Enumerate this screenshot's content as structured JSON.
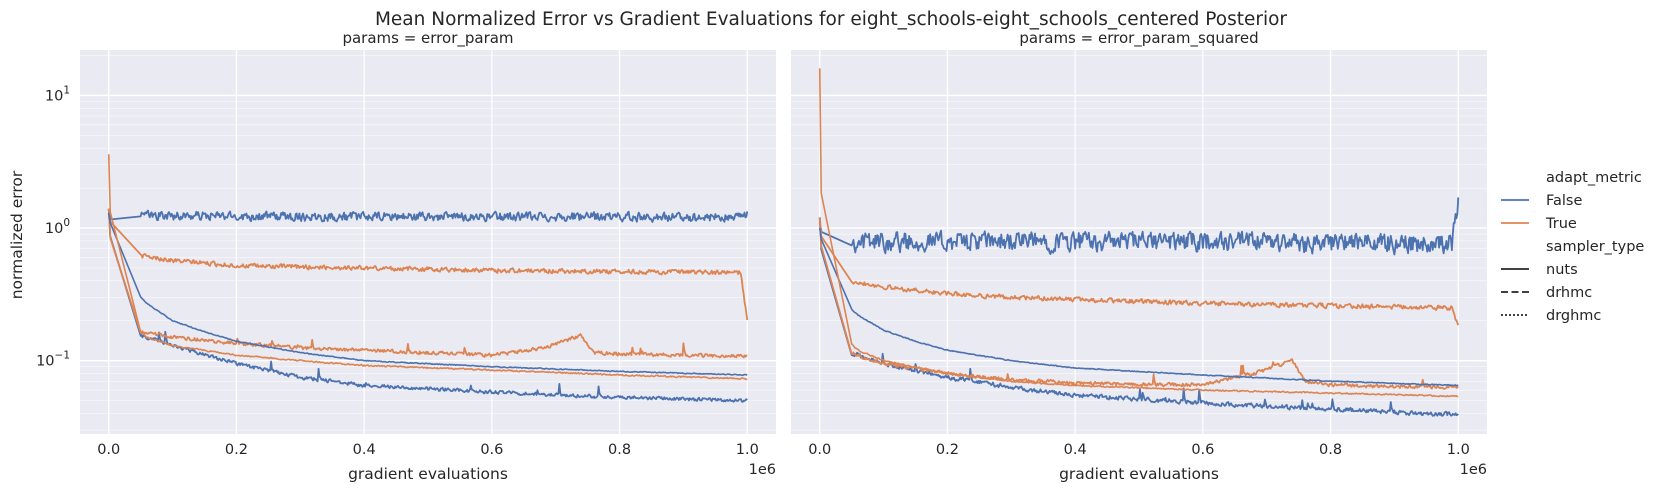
{
  "chart_data": {
    "type": "line",
    "title": "Mean Normalized Error vs Gradient Evaluations for eight_schools-eight_schools_centered Posterior",
    "ylabel": "normalized error",
    "yscale": "log",
    "xlabel": "gradient evaluations",
    "x_offset_label": "1e6",
    "x_tick_labels": [
      "0.0",
      "0.2",
      "0.4",
      "0.6",
      "0.8",
      "1.0"
    ],
    "x_ticks": [
      0,
      200000,
      400000,
      600000,
      800000,
      1000000
    ],
    "y_tick_labels": [
      {
        "base": "10",
        "exp": "−1",
        "value": 0.1
      },
      {
        "base": "10",
        "exp": "0",
        "value": 1
      },
      {
        "base": "10",
        "exp": "1",
        "value": 10
      }
    ],
    "xlim": [
      -45000,
      1045000
    ],
    "ylim": [
      0.028,
      22
    ],
    "grid": true,
    "legend": {
      "placement": "right",
      "hue_title": "adapt_metric",
      "hue_entries": [
        {
          "label": "False",
          "color": "#4c72b0"
        },
        {
          "label": "True",
          "color": "#dd8452"
        }
      ],
      "style_title": "sampler_type",
      "style_entries": [
        {
          "label": "nuts",
          "dash": "solid"
        },
        {
          "label": "drhmc",
          "dash": "dashed"
        },
        {
          "label": "drghmc",
          "dash": "dotted"
        }
      ]
    },
    "panels": [
      {
        "title": "params = error_param",
        "series": [
          {
            "adapt_metric": "False",
            "sampler_type": "drhmc",
            "color": "#4c72b0",
            "noise": 0.1,
            "x": [
              0,
              5000,
              20000,
              50000,
              100000,
              200000,
              400000,
              600000,
              800000,
              990000,
              1000000
            ],
            "y": [
              1.3,
              1.2,
              1.22,
              1.25,
              1.24,
              1.23,
              1.22,
              1.22,
              1.22,
              1.2,
              1.3
            ]
          },
          {
            "adapt_metric": "True",
            "sampler_type": "drhmc",
            "color": "#dd8452",
            "noise": 0.05,
            "x": [
              0,
              5000,
              20000,
              50000,
              100000,
              200000,
              300000,
              400000,
              600000,
              800000,
              990000,
              1000000
            ],
            "y": [
              1.3,
              0.9,
              0.7,
              0.62,
              0.57,
              0.52,
              0.51,
              0.5,
              0.48,
              0.47,
              0.46,
              0.2
            ]
          },
          {
            "adapt_metric": "False",
            "sampler_type": "nuts",
            "color": "#4c72b0",
            "noise": 0.04,
            "x": [
              0,
              5000,
              10000,
              20000,
              40000,
              70000,
              100000,
              200000,
              300000,
              400000,
              600000,
              800000,
              1000000
            ],
            "y": [
              1.4,
              0.5,
              0.3,
              0.2,
              0.16,
              0.145,
              0.13,
              0.095,
              0.075,
              0.065,
              0.058,
              0.053,
              0.05
            ]
          },
          {
            "adapt_metric": "True",
            "sampler_type": "nuts",
            "color": "#dd8452",
            "noise": 0.04,
            "x": [
              0,
              5000,
              10000,
              20000,
              40000,
              70000,
              100000,
              200000,
              300000,
              400000,
              500000,
              600000,
              680000,
              740000,
              760000,
              800000,
              900000,
              1000000
            ],
            "y": [
              1.4,
              0.5,
              0.3,
              0.2,
              0.17,
              0.16,
              0.15,
              0.135,
              0.125,
              0.12,
              0.115,
              0.11,
              0.125,
              0.155,
              0.115,
              0.113,
              0.11,
              0.108
            ]
          },
          {
            "adapt_metric": "False",
            "sampler_type": "drghmc",
            "color": "#4c72b0",
            "noise": 0.01,
            "x": [
              0,
              10000,
              30000,
              60000,
              100000,
              150000,
              200000,
              300000,
              400000,
              600000,
              800000,
              1000000
            ],
            "y": [
              1.3,
              0.6,
              0.38,
              0.27,
              0.2,
              0.165,
              0.14,
              0.115,
              0.1,
              0.09,
              0.083,
              0.078
            ]
          },
          {
            "adapt_metric": "True",
            "sampler_type": "drghmc",
            "color": "#dd8452",
            "noise": 0.015,
            "x": [
              0,
              3000,
              8000,
              15000,
              30000,
              60000,
              100000,
              200000,
              300000,
              400000,
              600000,
              800000,
              1000000
            ],
            "y": [
              3.6,
              1.0,
              0.5,
              0.3,
              0.2,
              0.15,
              0.13,
              0.11,
              0.1,
              0.092,
              0.085,
              0.078,
              0.073
            ]
          }
        ]
      },
      {
        "title": "params = error_param_squared",
        "series": [
          {
            "adapt_metric": "False",
            "sampler_type": "drhmc",
            "color": "#4c72b0",
            "noise": 0.22,
            "x": [
              0,
              5000,
              20000,
              50000,
              100000,
              200000,
              400000,
              600000,
              800000,
              990000,
              1000000
            ],
            "y": [
              1.1,
              0.8,
              0.78,
              0.8,
              0.8,
              0.8,
              0.8,
              0.8,
              0.78,
              0.78,
              1.5
            ]
          },
          {
            "adapt_metric": "True",
            "sampler_type": "drhmc",
            "color": "#dd8452",
            "noise": 0.05,
            "x": [
              0,
              5000,
              20000,
              50000,
              100000,
              200000,
              300000,
              400000,
              600000,
              800000,
              990000,
              1000000
            ],
            "y": [
              1.2,
              0.65,
              0.48,
              0.4,
              0.36,
              0.32,
              0.3,
              0.29,
              0.27,
              0.26,
              0.25,
              0.18
            ]
          },
          {
            "adapt_metric": "False",
            "sampler_type": "nuts",
            "color": "#4c72b0",
            "noise": 0.05,
            "x": [
              0,
              5000,
              10000,
              20000,
              40000,
              70000,
              100000,
              200000,
              300000,
              400000,
              600000,
              800000,
              1000000
            ],
            "y": [
              1.2,
              0.4,
              0.22,
              0.15,
              0.12,
              0.105,
              0.095,
              0.075,
              0.063,
              0.055,
              0.048,
              0.043,
              0.039
            ]
          },
          {
            "adapt_metric": "True",
            "sampler_type": "nuts",
            "color": "#dd8452",
            "noise": 0.04,
            "x": [
              0,
              5000,
              10000,
              20000,
              40000,
              70000,
              100000,
              200000,
              300000,
              400000,
              500000,
              600000,
              680000,
              740000,
              760000,
              800000,
              900000,
              1000000
            ],
            "y": [
              1.2,
              0.45,
              0.25,
              0.16,
              0.12,
              0.105,
              0.095,
              0.08,
              0.072,
              0.068,
              0.066,
              0.066,
              0.08,
              0.1,
              0.07,
              0.066,
              0.064,
              0.063
            ]
          },
          {
            "adapt_metric": "False",
            "sampler_type": "drghmc",
            "color": "#4c72b0",
            "noise": 0.01,
            "x": [
              0,
              10000,
              30000,
              60000,
              100000,
              150000,
              200000,
              300000,
              400000,
              600000,
              800000,
              1000000
            ],
            "y": [
              1.0,
              0.45,
              0.3,
              0.22,
              0.17,
              0.14,
              0.12,
              0.1,
              0.088,
              0.078,
              0.07,
              0.065
            ]
          },
          {
            "adapt_metric": "True",
            "sampler_type": "drghmc",
            "color": "#dd8452",
            "noise": 0.015,
            "x": [
              0,
              3000,
              8000,
              15000,
              30000,
              60000,
              100000,
              200000,
              300000,
              400000,
              600000,
              800000,
              1000000
            ],
            "y": [
              16,
              1.0,
              0.4,
              0.25,
              0.16,
              0.12,
              0.1,
              0.08,
              0.07,
              0.065,
              0.06,
              0.057,
              0.054
            ]
          }
        ]
      }
    ]
  }
}
